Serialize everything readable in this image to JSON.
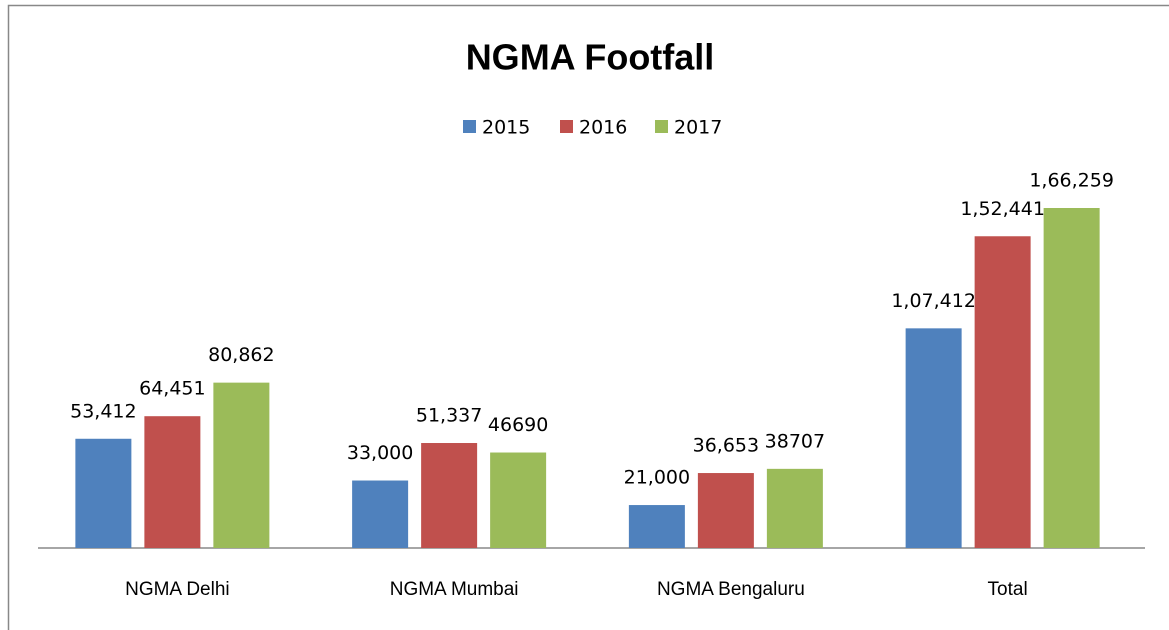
{
  "chart_data": {
    "type": "bar",
    "title": "NGMA Footfall",
    "categories": [
      "NGMA Delhi",
      "NGMA Mumbai",
      "NGMA Bengaluru",
      "Total"
    ],
    "series": [
      {
        "name": "2015",
        "color": "#4f81bd",
        "values": [
          53412,
          33000,
          21000,
          107412
        ],
        "value_labels": [
          "53,412",
          "33,000",
          "21,000",
          "1,07,412"
        ]
      },
      {
        "name": "2016",
        "color": "#c0504d",
        "values": [
          64451,
          51337,
          36653,
          152441
        ],
        "value_labels": [
          "64,451",
          "51,337",
          "36,653",
          "1,52,441"
        ]
      },
      {
        "name": "2017",
        "color": "#9bbb59",
        "values": [
          80862,
          46690,
          38707,
          166259
        ],
        "value_labels": [
          "80,862",
          "46690",
          "38707",
          "1,66,259"
        ]
      }
    ],
    "legend": "top"
  }
}
